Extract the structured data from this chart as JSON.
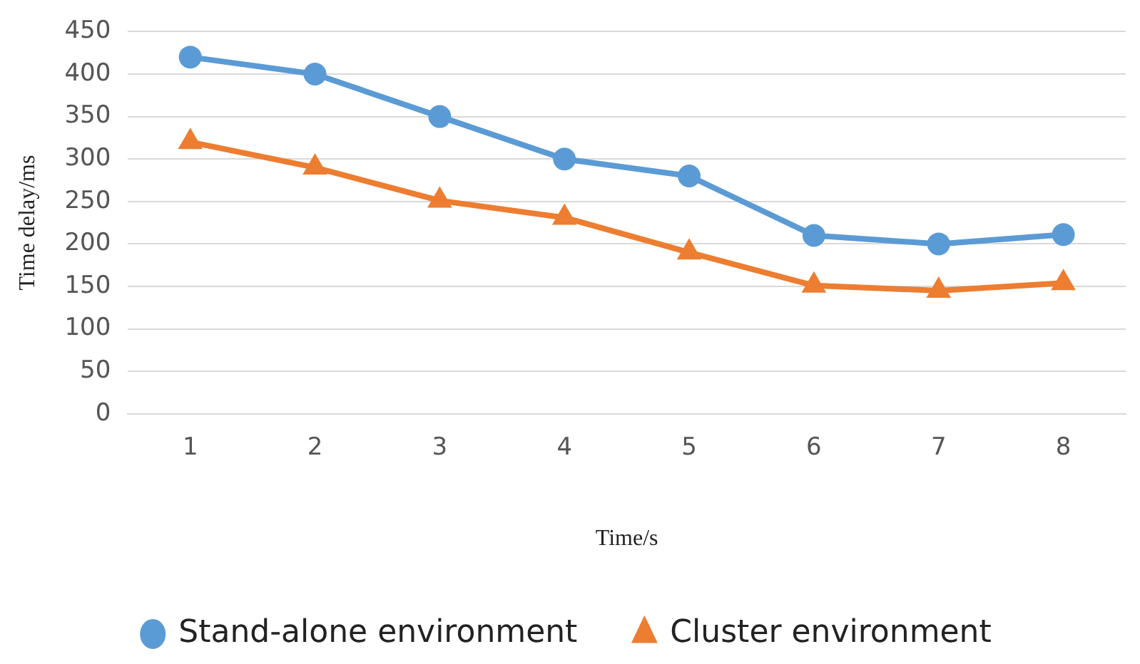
{
  "chart_data": {
    "type": "line",
    "xlabel": "Time/s",
    "ylabel": "Time delay/ms",
    "categories": [
      "1",
      "2",
      "3",
      "4",
      "5",
      "6",
      "7",
      "8"
    ],
    "series": [
      {
        "name": "Stand-alone environment",
        "color": "#5b9bd5",
        "marker": "circle",
        "values": [
          420,
          400,
          350,
          300,
          280,
          210,
          200,
          211
        ]
      },
      {
        "name": "Cluster environment",
        "color": "#ed7d31",
        "marker": "triangle",
        "values": [
          320,
          290,
          251,
          231,
          190,
          151,
          145,
          154
        ]
      }
    ],
    "ylim": [
      0,
      450
    ],
    "yticks": [
      0,
      50,
      100,
      150,
      200,
      250,
      300,
      350,
      400,
      450
    ],
    "grid": "y",
    "legend": "bottom"
  }
}
